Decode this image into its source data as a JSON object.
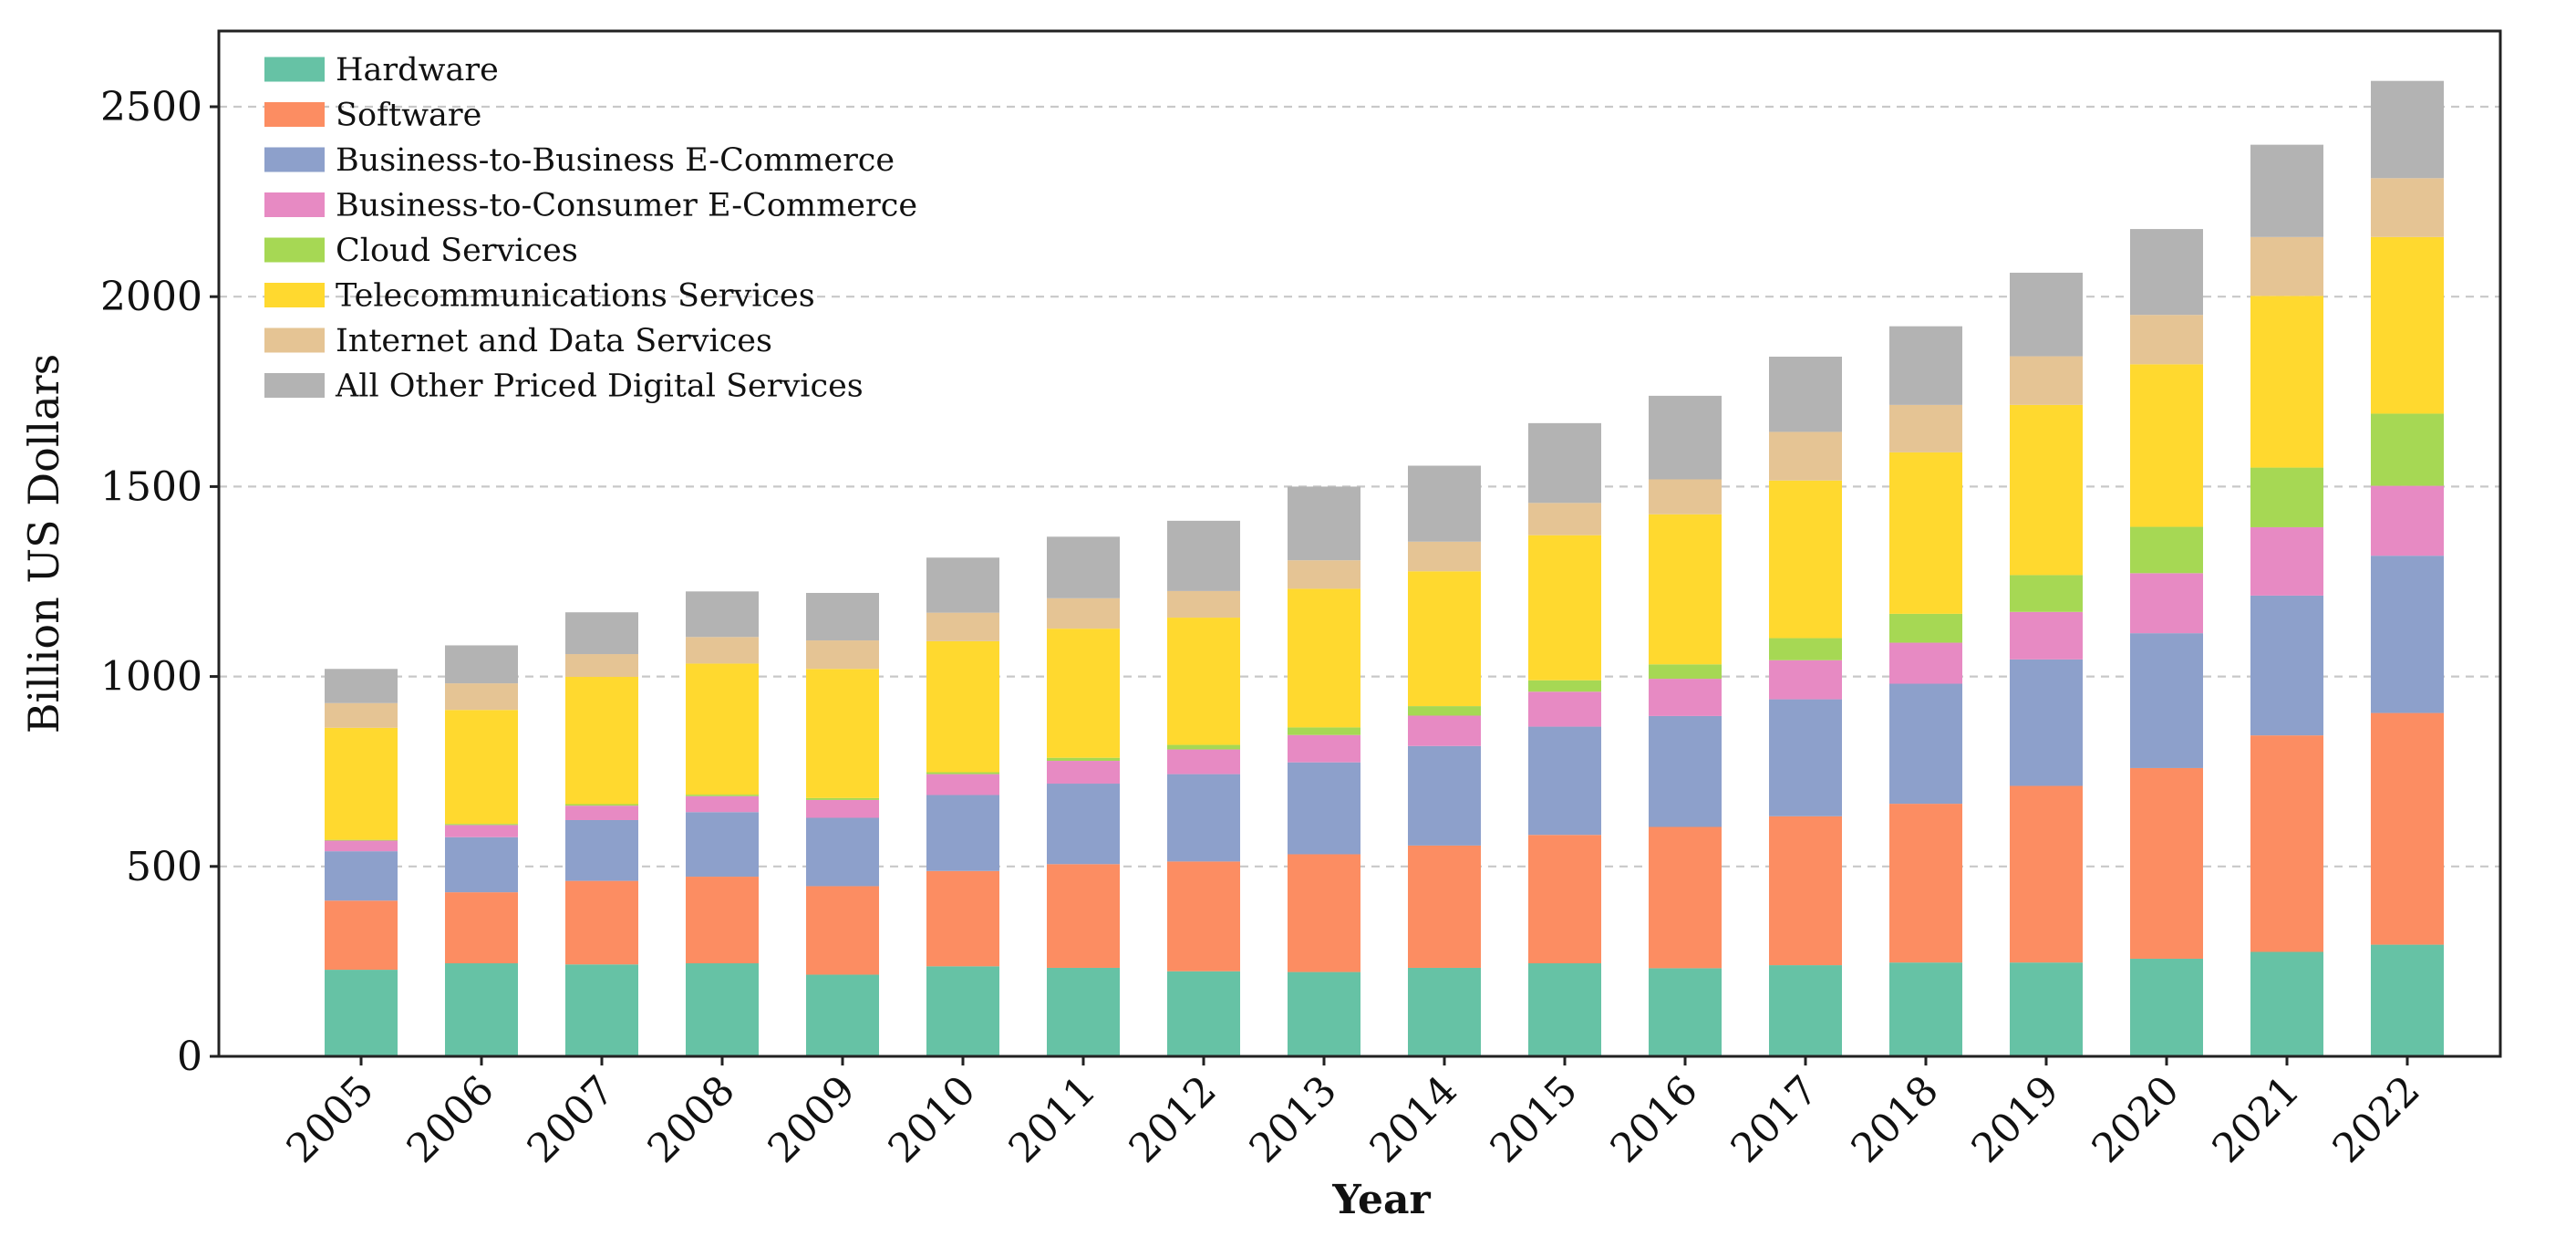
{
  "chart_data": {
    "type": "bar",
    "stacked": true,
    "title": "",
    "xlabel": "Year",
    "ylabel": "Billion US Dollars",
    "ylim": [
      0,
      2700
    ],
    "yticks": [
      0,
      500,
      1000,
      1500,
      2000,
      2500
    ],
    "grid": "y-dashed",
    "legend_position": "top-left",
    "categories": [
      "2005",
      "2006",
      "2007",
      "2008",
      "2009",
      "2010",
      "2011",
      "2012",
      "2013",
      "2014",
      "2015",
      "2016",
      "2017",
      "2018",
      "2019",
      "2020",
      "2021",
      "2022"
    ],
    "series": [
      {
        "name": "Hardware",
        "color": "#66c2a5",
        "values": [
          228,
          245,
          242,
          245,
          215,
          237,
          233,
          224,
          222,
          233,
          245,
          232,
          240,
          247,
          247,
          257,
          275,
          294
        ]
      },
      {
        "name": "Software",
        "color": "#fc8d62",
        "values": [
          182,
          187,
          220,
          228,
          233,
          251,
          273,
          289,
          310,
          322,
          338,
          372,
          392,
          418,
          465,
          502,
          570,
          610
        ]
      },
      {
        "name": "Business-to-Business E-Commerce",
        "color": "#8da0cb",
        "values": [
          130,
          145,
          160,
          170,
          180,
          200,
          212,
          230,
          242,
          262,
          285,
          292,
          308,
          316,
          333,
          355,
          368,
          414
        ]
      },
      {
        "name": "Business-to-Consumer E-Commerce",
        "color": "#e78ac3",
        "values": [
          28,
          32,
          38,
          42,
          47,
          55,
          60,
          65,
          72,
          80,
          92,
          98,
          103,
          108,
          125,
          158,
          180,
          184
        ]
      },
      {
        "name": "Cloud Services",
        "color": "#a6d854",
        "values": [
          2,
          3,
          4,
          4,
          5,
          5,
          8,
          12,
          20,
          25,
          30,
          38,
          58,
          76,
          97,
          122,
          157,
          190
        ]
      },
      {
        "name": "Telecommunications Services",
        "color": "#ffd92f",
        "values": [
          295,
          300,
          335,
          345,
          340,
          345,
          340,
          335,
          365,
          355,
          382,
          395,
          415,
          425,
          448,
          428,
          452,
          465
        ]
      },
      {
        "name": "Internet and Data Services",
        "color": "#e5c494",
        "values": [
          65,
          70,
          60,
          70,
          75,
          75,
          80,
          70,
          75,
          78,
          85,
          92,
          128,
          125,
          128,
          130,
          155,
          155
        ]
      },
      {
        "name": "All Other Priced Digital Services",
        "color": "#b3b3b3",
        "values": [
          90,
          100,
          110,
          120,
          125,
          145,
          162,
          185,
          194,
          200,
          210,
          220,
          198,
          207,
          220,
          226,
          243,
          256
        ]
      }
    ]
  }
}
